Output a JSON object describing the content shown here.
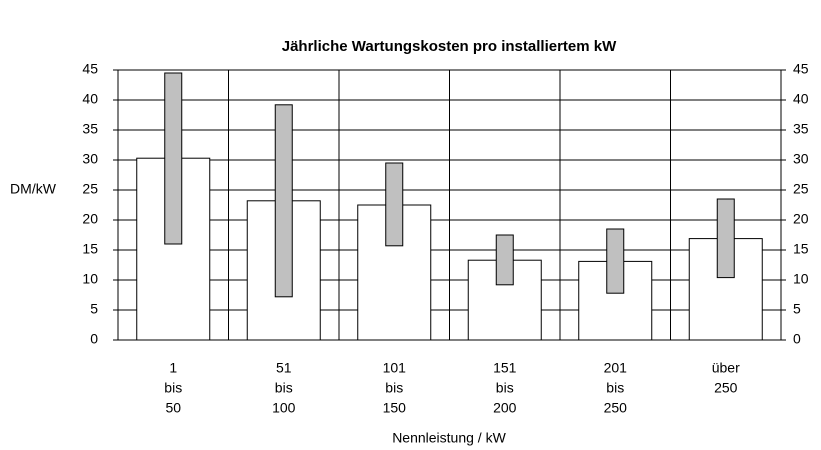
{
  "chart_data": {
    "type": "bar-range",
    "title": "Jährliche Wartungskosten pro installiertem kW",
    "y_label": "DM/kW",
    "x_label": "Nennleistung / kW",
    "categories": [
      [
        "1",
        "bis",
        "50"
      ],
      [
        "51",
        "bis",
        "100"
      ],
      [
        "101",
        "bis",
        "150"
      ],
      [
        "151",
        "bis",
        "200"
      ],
      [
        "201",
        "bis",
        "250"
      ],
      [
        "über",
        "250"
      ]
    ],
    "values": [
      30.3,
      23.2,
      22.5,
      13.3,
      13.1,
      16.9
    ],
    "low": [
      16,
      7.2,
      15.7,
      9.2,
      7.8,
      10.4
    ],
    "high": [
      44.5,
      39.2,
      29.5,
      17.5,
      18.5,
      23.5
    ],
    "color": "#ffffff",
    "range_color": "#c0c0c0",
    "ylim": [
      0,
      45
    ],
    "yticks": [
      0,
      5,
      10,
      15,
      20,
      25,
      30,
      35,
      40,
      45
    ],
    "y2lim": [
      0,
      45
    ],
    "y2ticks": [
      0,
      5,
      10,
      15,
      20,
      25,
      30,
      35,
      40,
      45
    ],
    "grid": true
  }
}
